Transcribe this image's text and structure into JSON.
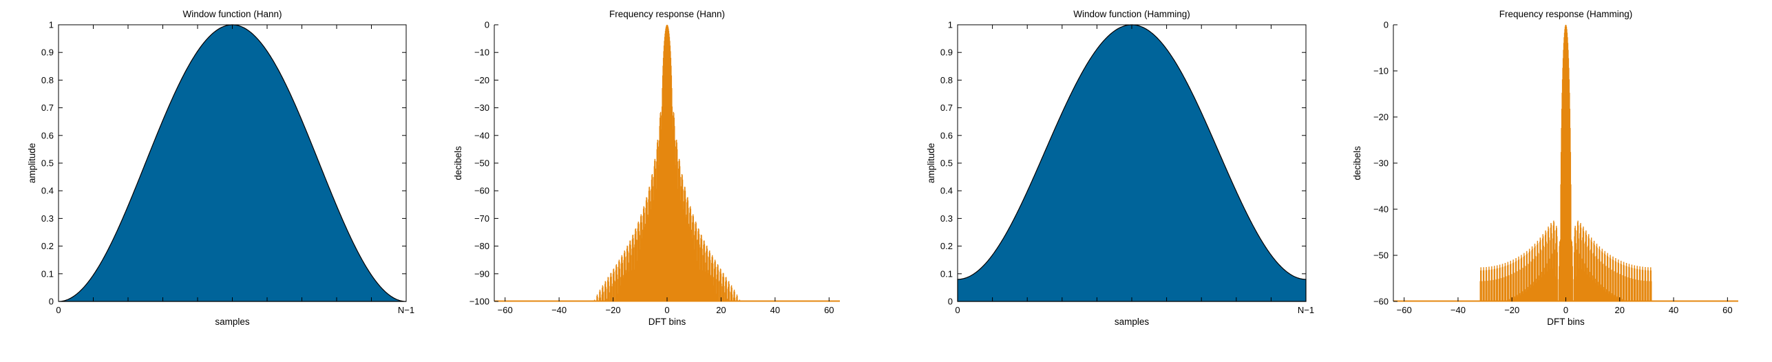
{
  "colors": {
    "window_fill": "#00649a",
    "response_fill": "#e5870f",
    "axis": "#000000"
  },
  "chart_data": [
    {
      "type": "area",
      "title": "Window function (Hann)",
      "xlabel": "samples",
      "ylabel": "amplitude",
      "window": "hann",
      "x_tick_labels": [
        "0",
        "N−1"
      ],
      "ylim": [
        0,
        1
      ],
      "y_ticks": [
        0,
        0.1,
        0.2,
        0.3,
        0.4,
        0.5,
        0.6,
        0.7,
        0.8,
        0.9,
        1
      ],
      "y_tick_labels": [
        "0",
        "0.1",
        "0.2",
        "0.3",
        "0.4",
        "0.5",
        "0.6",
        "0.7",
        "0.8",
        "0.9",
        "1"
      ],
      "grid": false
    },
    {
      "type": "bar",
      "title": "Frequency response (Hann)",
      "xlabel": "DFT bins",
      "ylabel": "decibels",
      "window": "hann",
      "xlim": [
        -64,
        64
      ],
      "ylim": [
        -100,
        0
      ],
      "x_ticks": [
        -60,
        -40,
        -20,
        0,
        20,
        40,
        60
      ],
      "x_tick_labels": [
        "−60",
        "−40",
        "−20",
        "0",
        "20",
        "40",
        "60"
      ],
      "y_ticks": [
        0,
        -10,
        -20,
        -30,
        -40,
        -50,
        -60,
        -70,
        -80,
        -90,
        -100
      ],
      "y_tick_labels": [
        "0",
        "−10",
        "−20",
        "−30",
        "−40",
        "−50",
        "−60",
        "−70",
        "−80",
        "−90",
        "−100"
      ],
      "grid": false
    },
    {
      "type": "area",
      "title": "Window function (Hamming)",
      "xlabel": "samples",
      "ylabel": "amplitude",
      "window": "hamming",
      "x_tick_labels": [
        "0",
        "N−1"
      ],
      "ylim": [
        0,
        1
      ],
      "y_ticks": [
        0,
        0.1,
        0.2,
        0.3,
        0.4,
        0.5,
        0.6,
        0.7,
        0.8,
        0.9,
        1
      ],
      "y_tick_labels": [
        "0",
        "0.1",
        "0.2",
        "0.3",
        "0.4",
        "0.5",
        "0.6",
        "0.7",
        "0.8",
        "0.9",
        "1"
      ],
      "grid": false
    },
    {
      "type": "bar",
      "title": "Frequency response (Hamming)",
      "xlabel": "DFT bins",
      "ylabel": "decibels",
      "window": "hamming",
      "xlim": [
        -64,
        64
      ],
      "ylim": [
        -60,
        0
      ],
      "x_ticks": [
        -60,
        -40,
        -20,
        0,
        20,
        40,
        60
      ],
      "x_tick_labels": [
        "−60",
        "−40",
        "−20",
        "0",
        "20",
        "40",
        "60"
      ],
      "y_ticks": [
        0,
        -10,
        -20,
        -30,
        -40,
        -50,
        -60
      ],
      "y_tick_labels": [
        "0",
        "−10",
        "−20",
        "−30",
        "−40",
        "−50",
        "−60"
      ],
      "grid": false
    }
  ]
}
